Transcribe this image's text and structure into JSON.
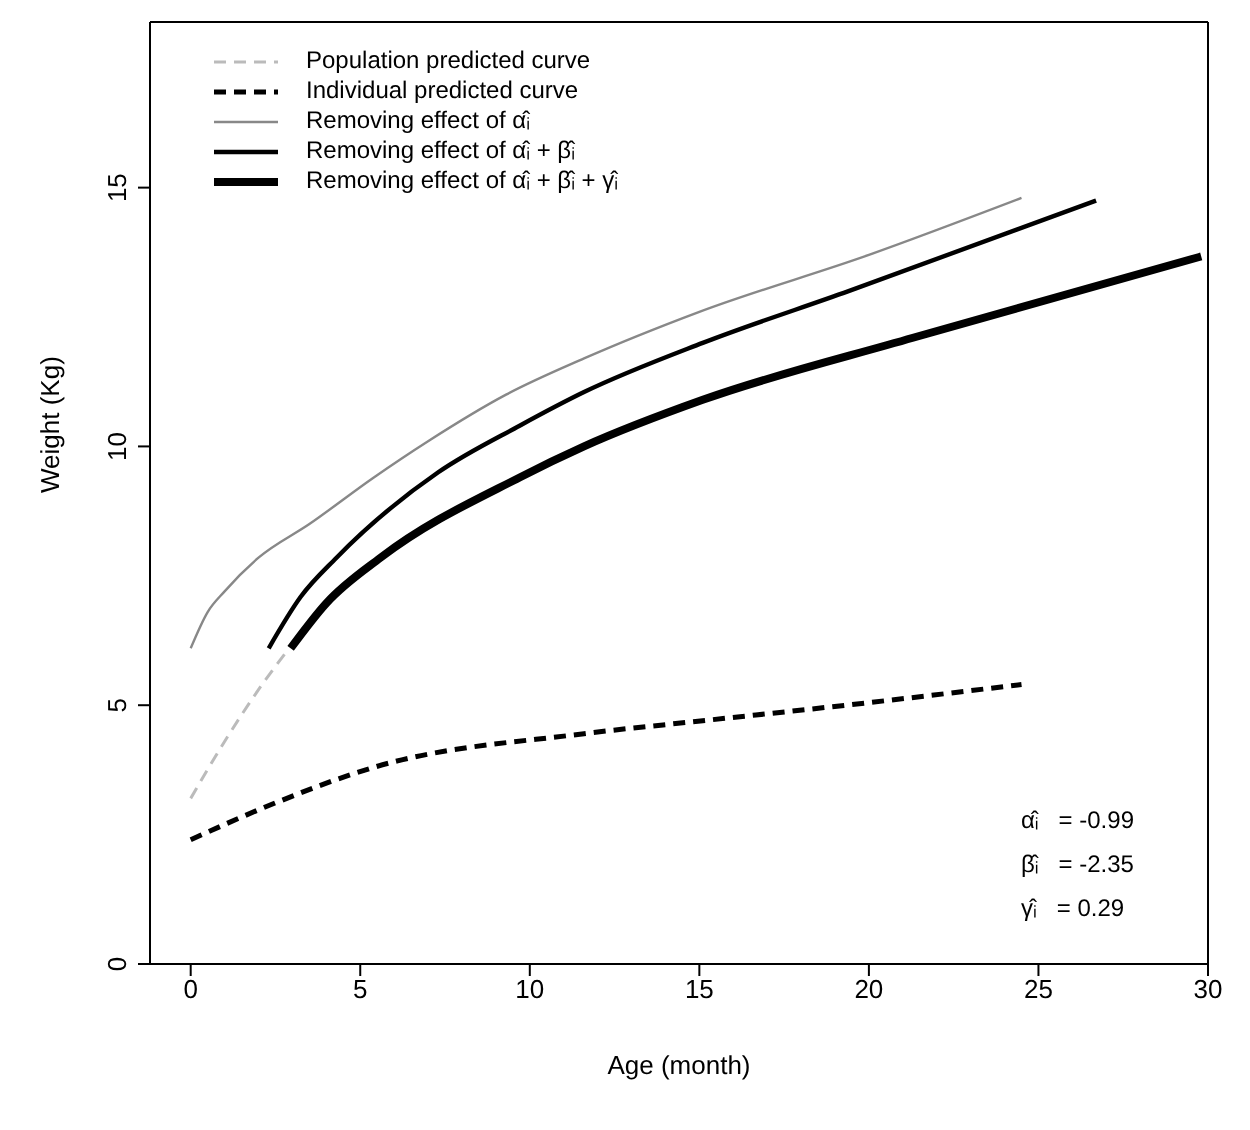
{
  "chart_data": {
    "type": "line",
    "xlabel": "Age (month)",
    "ylabel": "Weight (Kg)",
    "xlim": [
      -1.2,
      30
    ],
    "ylim": [
      0,
      18.2
    ],
    "xticks": [
      0,
      5,
      10,
      15,
      20,
      25,
      30
    ],
    "yticks": [
      0,
      5,
      10,
      15
    ],
    "grid": false,
    "legend": "top left",
    "marker": "none",
    "series": [
      {
        "name": "Population predicted curve",
        "color": "#bbbbbb",
        "line_style": "dashed",
        "x": [
          0,
          1,
          2,
          2.9
        ],
        "values": [
          3.2,
          4.3,
          5.3,
          6.1
        ]
      },
      {
        "name": "Individual predicted curve",
        "color": "#000000",
        "line_style": "dashed",
        "x": [
          0,
          2.45,
          5.4,
          11.6,
          15.1,
          20,
          24.5
        ],
        "values": [
          2.4,
          3.1,
          3.8,
          4.45,
          4.7,
          5.05,
          5.4
        ]
      },
      {
        "name": "Removing effect of α̂ᵢ",
        "color": "#888888",
        "line_style": "solid",
        "x": [
          0,
          0.5,
          1,
          2,
          3.5,
          5.4,
          7,
          9.3,
          11.6,
          15,
          20,
          24.5
        ],
        "values": [
          6.1,
          6.8,
          7.2,
          7.85,
          8.5,
          9.4,
          10.1,
          11,
          11.7,
          12.6,
          13.7,
          14.8
        ]
      },
      {
        "name": "Removing effect of α̂ᵢ + β̂ᵢ",
        "color": "#000000",
        "line_style": "solid",
        "x": [
          2.3,
          3.25,
          4.3,
          7.3,
          9.7,
          11.6,
          15.1,
          19.4,
          26.7
        ],
        "values": [
          6.1,
          7.1,
          7.85,
          9.5,
          10.4,
          11.05,
          12,
          13,
          14.75
        ]
      },
      {
        "name": "Removing effect of α̂ᵢ + β̂ᵢ + γ̂ᵢ",
        "color": "#000000",
        "line_style": "solid",
        "x": [
          2.95,
          4,
          5.6,
          9.7,
          11.6,
          15.1,
          21.3,
          29.8
        ],
        "values": [
          6.1,
          6.97,
          7.85,
          9.4,
          10,
          10.9,
          12.1,
          13.67
        ]
      }
    ],
    "annotations": [
      "α̂ᵢ   = -0.99",
      "β̂ᵢ   = -2.35",
      "γ̂ᵢ   = 0.29"
    ]
  }
}
